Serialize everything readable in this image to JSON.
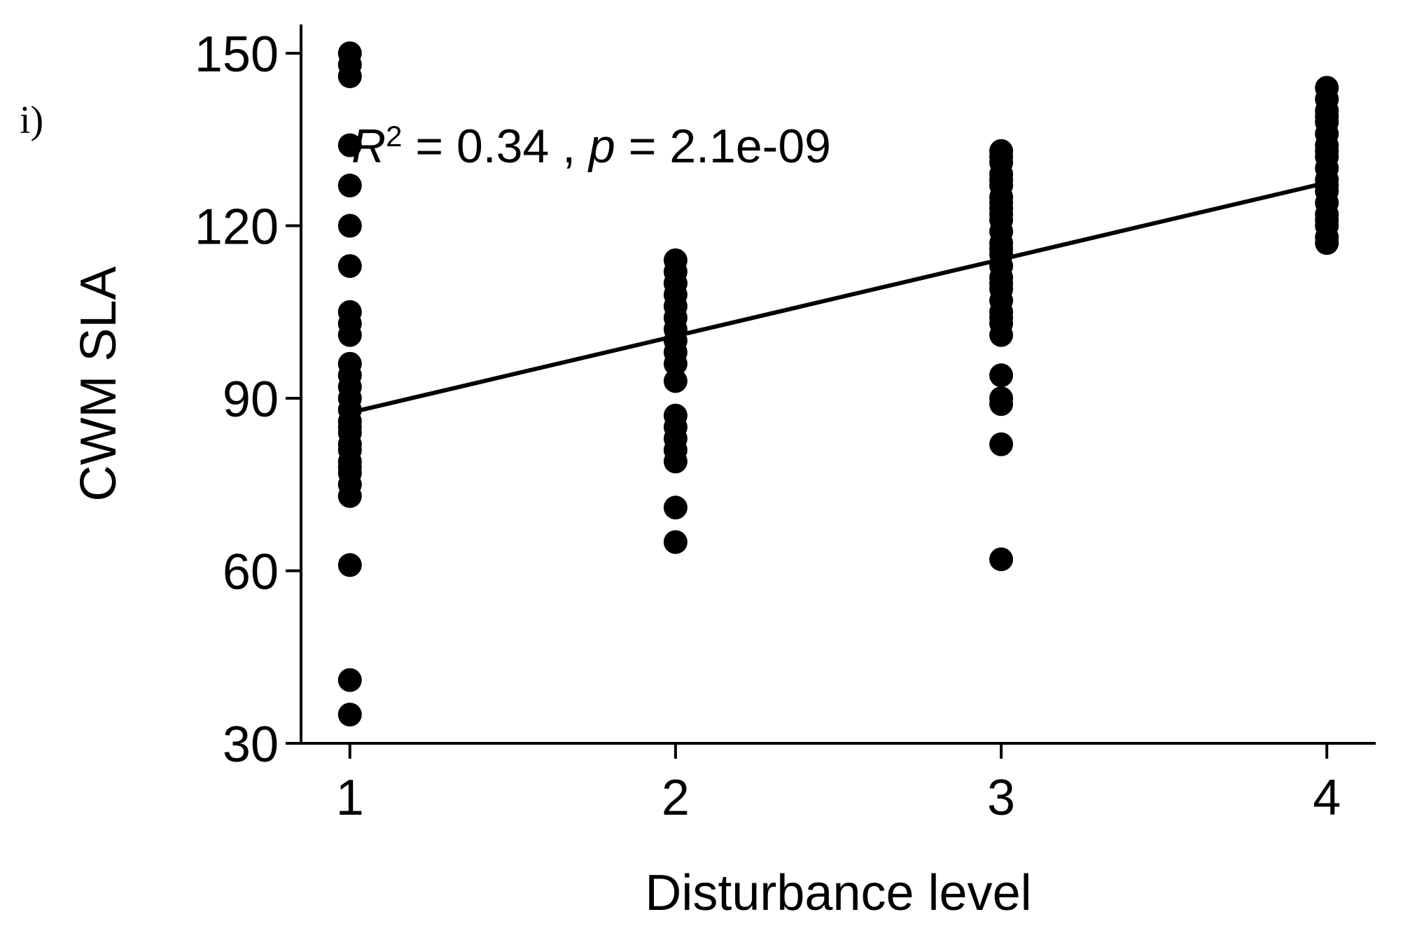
{
  "panel_label": "i)",
  "chart_data": {
    "type": "scatter",
    "title": "",
    "xlabel": "Disturbance level",
    "ylabel": "CWM SLA",
    "xlim": [
      0.85,
      4.15
    ],
    "ylim": [
      30,
      155
    ],
    "x_ticks": [
      1,
      2,
      3,
      4
    ],
    "y_ticks": [
      30,
      60,
      90,
      120,
      150
    ],
    "grid": false,
    "legend": "none",
    "annotation": {
      "r_symbol": "R",
      "r_exponent": "2",
      "r_value_text": " = 0.34 , ",
      "p_symbol": "p",
      "p_value_text": " = 2.1e-09"
    },
    "regression": {
      "x": [
        1,
        4
      ],
      "y": [
        87.5,
        127.5
      ]
    },
    "colors": {
      "points": "#000000",
      "line": "#000000",
      "axes": "#000000"
    },
    "series": [
      {
        "x": [
          1,
          1,
          1,
          1,
          1,
          1,
          1,
          1,
          1,
          1,
          1,
          1,
          1,
          1,
          1,
          1,
          1,
          1,
          1,
          1,
          1,
          1,
          1,
          1,
          1,
          1,
          1,
          1
        ],
        "y": [
          150,
          148,
          146,
          134,
          127,
          120,
          113,
          105,
          103,
          101,
          92,
          90,
          88,
          86,
          84,
          81,
          79,
          77,
          75,
          73,
          61,
          41,
          35,
          96,
          94,
          85,
          82,
          78
        ]
      },
      {
        "x": [
          2,
          2,
          2,
          2,
          2,
          2,
          2,
          2,
          2,
          2,
          2,
          2,
          2,
          2,
          2,
          2,
          2,
          2,
          2
        ],
        "y": [
          114,
          112,
          110,
          108,
          106,
          104,
          102,
          100,
          98,
          93,
          87,
          85,
          83,
          81,
          79,
          71,
          65,
          96,
          110
        ]
      },
      {
        "x": [
          3,
          3,
          3,
          3,
          3,
          3,
          3,
          3,
          3,
          3,
          3,
          3,
          3,
          3,
          3,
          3,
          3,
          3,
          3,
          3,
          3,
          3,
          3,
          3,
          3,
          3,
          3,
          3,
          3
        ],
        "y": [
          133,
          131,
          129,
          127,
          125,
          123,
          121,
          119,
          117,
          115,
          113,
          111,
          109,
          107,
          105,
          103,
          101,
          94,
          90,
          89,
          82,
          62,
          122,
          116,
          110,
          104,
          132,
          128,
          124
        ]
      },
      {
        "x": [
          4,
          4,
          4,
          4,
          4,
          4,
          4,
          4,
          4,
          4,
          4,
          4,
          4,
          4,
          4,
          4,
          4,
          4,
          4
        ],
        "y": [
          144,
          142,
          140,
          138,
          136,
          134,
          132,
          130,
          128,
          126,
          124,
          122,
          120,
          118,
          117,
          139,
          133,
          127,
          121
        ]
      }
    ]
  }
}
